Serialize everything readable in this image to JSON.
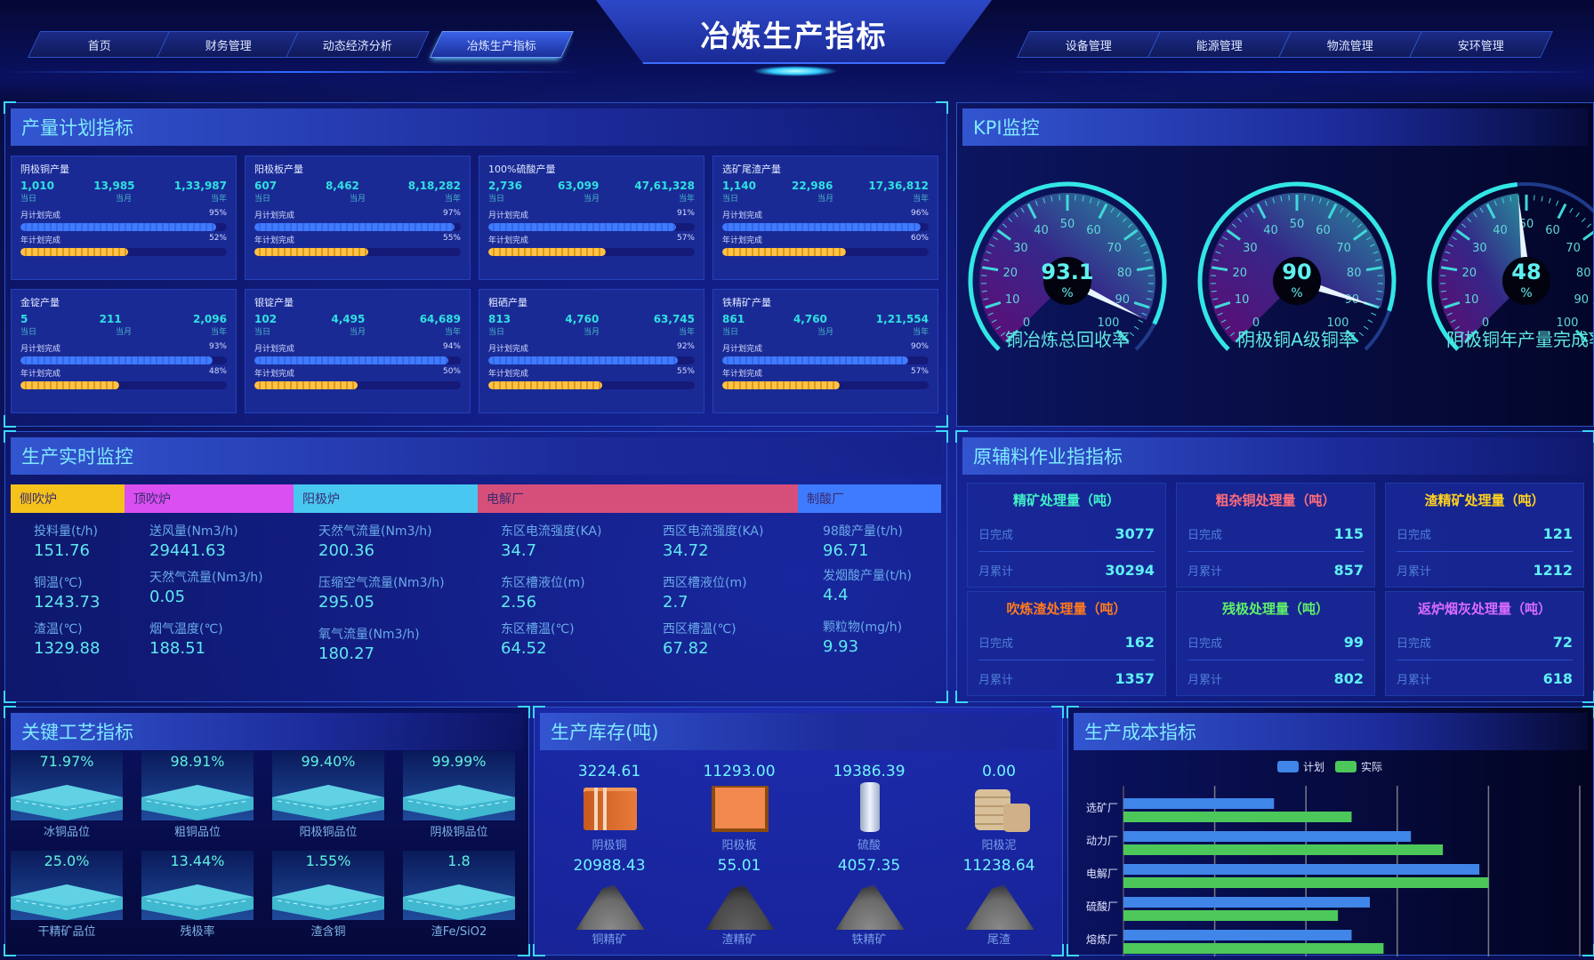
{
  "header": {
    "title": "冶炼生产指标",
    "nav_left": [
      {
        "label": "首页"
      },
      {
        "label": "财务管理"
      },
      {
        "label": "动态经济分析"
      },
      {
        "label": "冶炼生产指标",
        "active": true
      }
    ],
    "nav_right": [
      {
        "label": "设备管理"
      },
      {
        "label": "能源管理"
      },
      {
        "label": "物流管理"
      },
      {
        "label": "安环管理"
      }
    ]
  },
  "production_plan": {
    "title": "产量计划指标",
    "period_labels": [
      "当日",
      "当月",
      "当年"
    ],
    "month_label": "月计划完成",
    "year_label": "年计划完成",
    "colors": {
      "month_bar": "#3f7bff",
      "year_bar": "#ffc24a"
    },
    "cards": [
      {
        "name": "阴极铜产量",
        "day": "1,010",
        "month": "13,985",
        "year": "1,33,987",
        "month_pct": 95,
        "year_pct": 52
      },
      {
        "name": "阳极板产量",
        "day": "607",
        "month": "8,462",
        "year": "8,18,282",
        "month_pct": 97,
        "year_pct": 55
      },
      {
        "name": "100%硫酸产量",
        "day": "2,736",
        "month": "63,099",
        "year": "47,61,328",
        "month_pct": 91,
        "year_pct": 57
      },
      {
        "name": "选矿尾渣产量",
        "day": "1,140",
        "month": "22,986",
        "year": "17,36,812",
        "month_pct": 96,
        "year_pct": 60
      },
      {
        "name": "金锭产量",
        "day": "5",
        "month": "211",
        "year": "2,096",
        "month_pct": 93,
        "year_pct": 48
      },
      {
        "name": "银锭产量",
        "day": "102",
        "month": "4,495",
        "year": "64,689",
        "month_pct": 94,
        "year_pct": 50
      },
      {
        "name": "粗硒产量",
        "day": "813",
        "month": "4,760",
        "year": "63,745",
        "month_pct": 92,
        "year_pct": 55
      },
      {
        "name": "铁精矿产量",
        "day": "861",
        "month": "4,760",
        "year": "1,21,554",
        "month_pct": 90,
        "year_pct": 57
      }
    ]
  },
  "kpi": {
    "title": "KPI监控",
    "unit": "%",
    "scale": [
      0,
      10,
      20,
      30,
      40,
      50,
      60,
      70,
      80,
      90,
      100
    ],
    "gauges": [
      {
        "label": "铜冶炼总回收率",
        "value": "93.1"
      },
      {
        "label": "阴极铜A级铜率",
        "value": "90"
      },
      {
        "label": "阴极铜年产量完成率",
        "value": "48"
      }
    ]
  },
  "realtime": {
    "title": "生产实时监控",
    "tabs": [
      {
        "label": "侧吹炉",
        "color": "#f5c21b"
      },
      {
        "label": "顶吹炉",
        "color": "#d94ff0"
      },
      {
        "label": "阳极炉",
        "color": "#48c8f0"
      },
      {
        "label": "电解厂",
        "color": "#d64f7a"
      },
      {
        "label": "制酸厂",
        "color": "#3f7bff"
      }
    ],
    "columns": [
      [
        {
          "label": "投料量(t/h)",
          "value": "151.76"
        },
        {
          "label": "铜温(℃)",
          "value": "1243.73"
        },
        {
          "label": "渣温(℃)",
          "value": "1329.88"
        }
      ],
      [
        {
          "label": "送风量(Nm3/h)",
          "value": "29441.63"
        },
        {
          "label": "天然气流量(Nm3/h)",
          "value": "0.05"
        },
        {
          "label": "烟气温度(℃)",
          "value": "188.51"
        }
      ],
      [
        {
          "label": "天然气流量(Nm3/h)",
          "value": "200.36"
        },
        {
          "label": "压缩空气流量(Nm3/h)",
          "value": "295.05"
        },
        {
          "label": "氧气流量(Nm3/h)",
          "value": "180.27"
        }
      ],
      [
        {
          "label": "东区电流强度(KA)",
          "value": "34.7"
        },
        {
          "label": "东区槽液位(m)",
          "value": "2.56"
        },
        {
          "label": "东区槽温(℃)",
          "value": "64.52"
        }
      ],
      [
        {
          "label": "西区电流强度(KA)",
          "value": "34.72"
        },
        {
          "label": "西区槽液位(m)",
          "value": "2.7"
        },
        {
          "label": "西区槽温(℃)",
          "value": "67.82"
        }
      ],
      [
        {
          "label": "98酸产量(t/h)",
          "value": "96.71"
        },
        {
          "label": "发烟酸产量(t/h)",
          "value": "4.4"
        },
        {
          "label": "颗粒物(mg/h)",
          "value": "9.93"
        }
      ]
    ]
  },
  "materials": {
    "title": "原辅料作业指指标",
    "day_label": "日完成",
    "month_label": "月累计",
    "cards": [
      {
        "name": "精矿处理量（吨）",
        "color": "#3ff0c8",
        "day": "3077",
        "month": "30294"
      },
      {
        "name": "粗杂铜处理量（吨）",
        "color": "#ff6b7a",
        "day": "115",
        "month": "857"
      },
      {
        "name": "渣精矿处理量（吨）",
        "color": "#ffd21e",
        "day": "121",
        "month": "1212"
      },
      {
        "name": "吹炼渣处理量（吨）",
        "color": "#ff7a1e",
        "day": "162",
        "month": "1357"
      },
      {
        "name": "残极处理量（吨）",
        "color": "#5ff06a",
        "day": "99",
        "month": "802"
      },
      {
        "name": "返炉烟灰处理量（吨）",
        "color": "#d86bff",
        "day": "72",
        "month": "618"
      }
    ]
  },
  "process": {
    "title": "关键工艺指标",
    "items": [
      {
        "value": "71.97%",
        "label": "冰铜品位"
      },
      {
        "value": "98.91%",
        "label": "粗铜品位"
      },
      {
        "value": "99.40%",
        "label": "阳极铜品位"
      },
      {
        "value": "99.99%",
        "label": "阴极铜品位"
      },
      {
        "value": "25.0%",
        "label": "干精矿品位"
      },
      {
        "value": "13.44%",
        "label": "残极率"
      },
      {
        "value": "1.55%",
        "label": "渣含铜"
      },
      {
        "value": "1.8",
        "label": "渣Fe/SiO2"
      }
    ]
  },
  "inventory": {
    "title": "生产库存(吨)",
    "items": [
      {
        "value": "3224.61",
        "label": "阴极铜",
        "icon": "copper-stack-icon"
      },
      {
        "value": "11293.00",
        "label": "阳极板",
        "icon": "anode-plate-icon"
      },
      {
        "value": "19386.39",
        "label": "硫酸",
        "icon": "acid-tank-icon"
      },
      {
        "value": "0.00",
        "label": "阳极泥",
        "icon": "sack-pile-icon"
      },
      {
        "value": "20988.43",
        "label": "铜精矿",
        "icon": "ore-pile-icon"
      },
      {
        "value": "55.01",
        "label": "渣精矿",
        "icon": "ore-pile-icon"
      },
      {
        "value": "4057.35",
        "label": "铁精矿",
        "icon": "ore-pile-icon"
      },
      {
        "value": "11238.64",
        "label": "尾渣",
        "icon": "ore-pile-icon"
      }
    ]
  },
  "chart_data": {
    "type": "bar",
    "orientation": "horizontal",
    "title": "生产成本指标",
    "categories": [
      "选矿厂",
      "动力厂",
      "电解厂",
      "硫酸厂",
      "熔炼厂"
    ],
    "series": [
      {
        "name": "计划",
        "color": "#3f86e8",
        "values": [
          3300,
          6300,
          7800,
          5400,
          5000
        ]
      },
      {
        "name": "实际",
        "color": "#4cc85a",
        "values": [
          5000,
          7000,
          8000,
          4700,
          5700
        ]
      }
    ],
    "xlim": [
      0,
      10000
    ],
    "xticks": [
      "0",
      "2,000",
      "4,000",
      "6,000",
      "8,000",
      "10,000"
    ],
    "grid": true,
    "legend": "top-center"
  }
}
